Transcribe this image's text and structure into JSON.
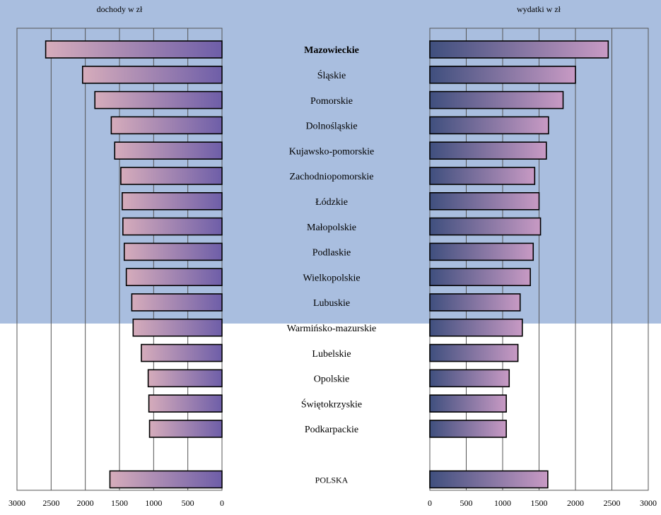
{
  "chart_data": {
    "type": "bar",
    "categories": [
      "Mazowieckie",
      "Śląskie",
      "Pomorskie",
      "Dolnośląskie",
      "Kujawsko-pomorskie",
      "Zachodniopomorskie",
      "Łódzkie",
      "Małopolskie",
      "Podlaskie",
      "Wielkopolskie",
      "Lubuskie",
      "Warmińsko-mazurskie",
      "Lubelskie",
      "Opolskie",
      "Świętokrzyskie",
      "Podkarpackie",
      null,
      "POLSKA"
    ],
    "series": [
      {
        "name": "dochody w zł",
        "color": [
          "#d6acbb",
          "#6e5ea8"
        ],
        "values": [
          2580,
          2040,
          1860,
          1620,
          1570,
          1480,
          1460,
          1450,
          1430,
          1400,
          1320,
          1300,
          1180,
          1080,
          1070,
          1060,
          null,
          1640
        ]
      },
      {
        "name": "wydatki w zł",
        "color": [
          "#3f4f7e",
          "#c89ac4"
        ],
        "values": [
          2450,
          2000,
          1830,
          1630,
          1600,
          1440,
          1500,
          1520,
          1420,
          1380,
          1240,
          1270,
          1210,
          1090,
          1050,
          1050,
          null,
          1620
        ]
      }
    ],
    "xlim": [
      0,
      3000
    ],
    "xticks": [
      0,
      500,
      1000,
      1500,
      2000,
      2500,
      3000
    ],
    "grid": true
  }
}
